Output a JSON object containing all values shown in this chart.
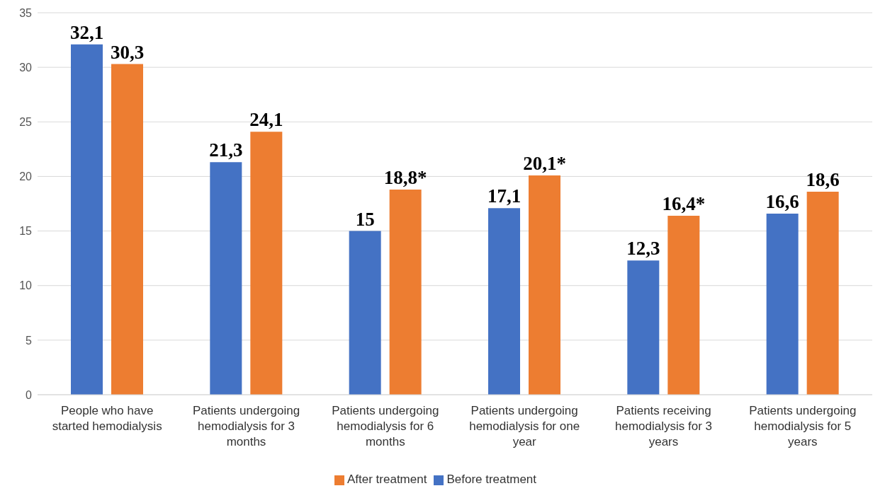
{
  "chart_data": {
    "type": "bar",
    "categories": [
      "People who have started hemodialysis",
      "Patients undergoing hemodialysis for 3 months",
      "Patients undergoing hemodialysis for 6 months",
      "Patients undergoing hemodialysis for one year",
      "Patients receiving hemodialysis for 3 years",
      "Patients undergoing hemodialysis for 5 years"
    ],
    "series": [
      {
        "name": "Before treatment",
        "color": "#4472c4",
        "values": [
          32.1,
          21.3,
          15,
          17.1,
          12.3,
          16.6
        ],
        "value_labels": [
          "32,1",
          "21,3",
          "15",
          "17,1",
          "12,3",
          "16,6"
        ]
      },
      {
        "name": "After treatment",
        "color": "#ed7d31",
        "values": [
          30.3,
          24.1,
          18.8,
          20.1,
          16.4,
          18.6
        ],
        "value_labels": [
          "30,3",
          "24,1",
          "18,8*",
          "20,1*",
          "16,4*",
          "18,6"
        ]
      }
    ],
    "ylim": [
      0,
      35
    ],
    "yticks": [
      0,
      5,
      10,
      15,
      20,
      25,
      30,
      35
    ],
    "grid": "y",
    "legend": "bottom"
  }
}
